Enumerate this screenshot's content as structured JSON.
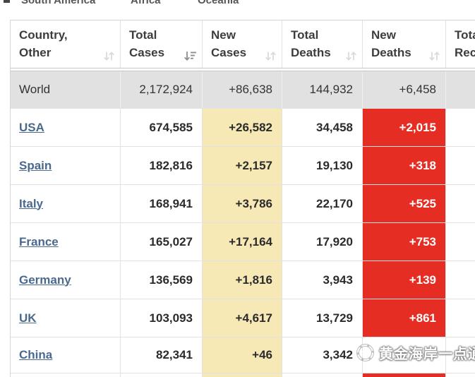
{
  "top_tabs": {
    "items": [
      {
        "label": "South America"
      },
      {
        "label": "Africa"
      },
      {
        "label": "Oceania"
      }
    ]
  },
  "table": {
    "columns": [
      {
        "line1": "Country,",
        "line2": "Other",
        "sort": "unsorted"
      },
      {
        "line1": "Total",
        "line2": "Cases",
        "sort": "desc"
      },
      {
        "line1": "New",
        "line2": "Cases",
        "sort": "unsorted"
      },
      {
        "line1": "Total",
        "line2": "Deaths",
        "sort": "unsorted"
      },
      {
        "line1": "New",
        "line2": "Deaths",
        "sort": "unsorted"
      },
      {
        "line1": "Total",
        "line2": "Recovered",
        "sort": "unsorted"
      }
    ],
    "world_row": {
      "name": "World",
      "total_cases": "2,172,924",
      "new_cases": "+86,638",
      "total_deaths": "144,932",
      "new_deaths": "+6,458",
      "total_recovered": ""
    },
    "rows": [
      {
        "country": "USA",
        "total_cases": "674,585",
        "new_cases": "+26,582",
        "total_deaths": "34,458",
        "new_deaths": "+2,015"
      },
      {
        "country": "Spain",
        "total_cases": "182,816",
        "new_cases": "+2,157",
        "total_deaths": "19,130",
        "new_deaths": "+318"
      },
      {
        "country": "Italy",
        "total_cases": "168,941",
        "new_cases": "+3,786",
        "total_deaths": "22,170",
        "new_deaths": "+525"
      },
      {
        "country": "France",
        "total_cases": "165,027",
        "new_cases": "+17,164",
        "total_deaths": "17,920",
        "new_deaths": "+753"
      },
      {
        "country": "Germany",
        "total_cases": "136,569",
        "new_cases": "+1,816",
        "total_deaths": "3,943",
        "new_deaths": "+139"
      },
      {
        "country": "UK",
        "total_cases": "103,093",
        "new_cases": "+4,617",
        "total_deaths": "13,729",
        "new_deaths": "+861"
      },
      {
        "country": "China",
        "total_cases": "82,341",
        "new_cases": "+46",
        "total_deaths": "3,342",
        "new_deaths": ""
      }
    ]
  },
  "watermark": {
    "text": "黄金海岸一点通"
  },
  "colors": {
    "new_cases_highlight": "#f7e9b6",
    "new_deaths_highlight": "#e62d23",
    "world_row_bg": "#e1e1e1",
    "country_link": "#4a698f"
  }
}
